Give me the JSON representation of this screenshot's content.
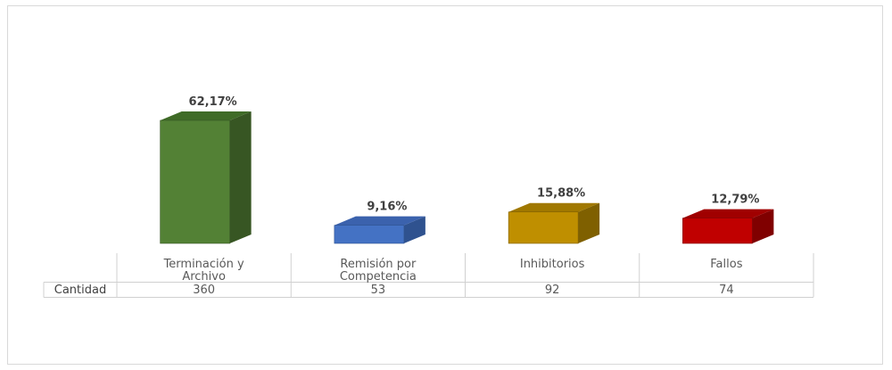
{
  "chart_data": {
    "type": "bar",
    "style": "3d-column-with-data-table",
    "categories": [
      [
        "Terminación y",
        "Archivo"
      ],
      [
        "Remisión por",
        "Competencia"
      ],
      [
        "Inhibitorios"
      ],
      [
        "Fallos"
      ]
    ],
    "data_labels": [
      "62,17%",
      "9,16%",
      "15,88%",
      "12,79%"
    ],
    "percent_values": [
      62.17,
      9.16,
      15.88,
      12.79
    ],
    "series": [
      {
        "name": "Cantidad",
        "values": [
          360,
          53,
          92,
          74
        ]
      }
    ],
    "table_values": [
      "360",
      "53",
      "92",
      "74"
    ],
    "colors": {
      "front": [
        "#538135",
        "#4472c4",
        "#bf8f00",
        "#c00000"
      ],
      "side": [
        "#375623",
        "#2f528f",
        "#7f6000",
        "#800000"
      ],
      "top": [
        "#3f6b27",
        "#3b62ad",
        "#a07800",
        "#a00000"
      ]
    },
    "grid": false,
    "legend": "none"
  }
}
